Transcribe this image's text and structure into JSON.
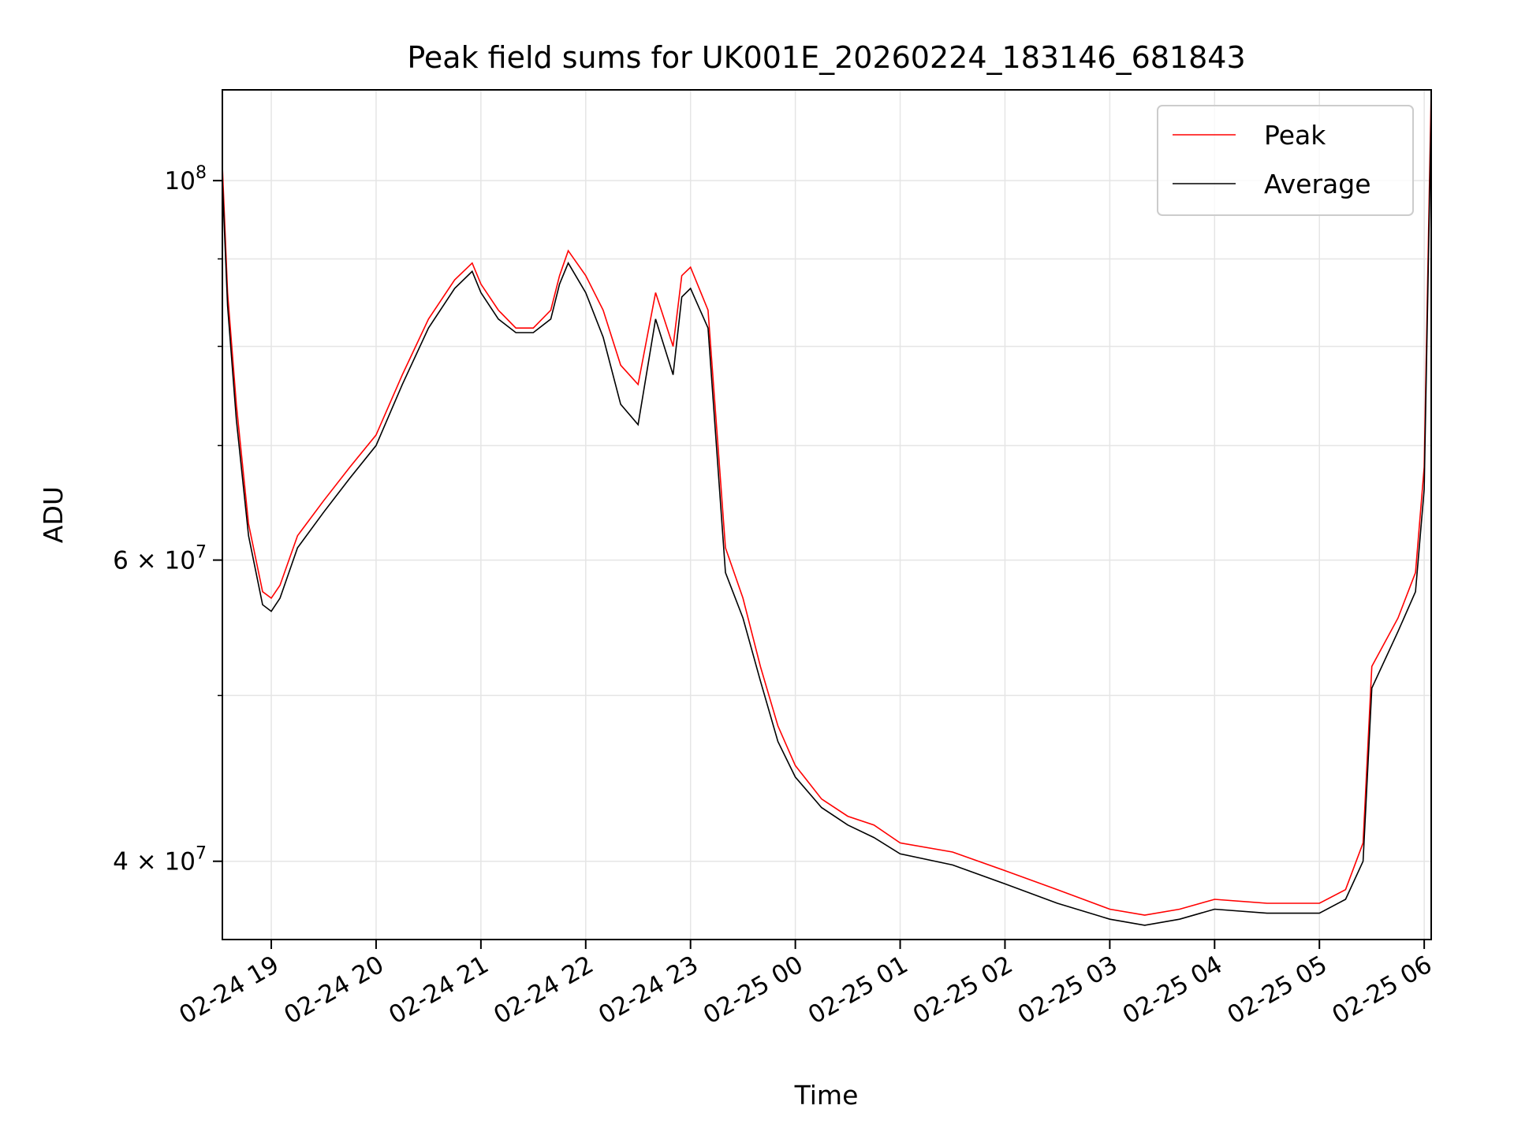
{
  "chart_data": {
    "type": "line",
    "title": "Peak field sums for UK001E_20260224_183146_681843",
    "xlabel": "Time",
    "ylabel": "ADU",
    "yscale": "log",
    "ylim": [
      36000000,
      113000000
    ],
    "xlim": [
      "2026-02-24 18:32",
      "2026-02-25 06:04"
    ],
    "grid": true,
    "legend": "top-right",
    "x_ticks": [
      "02-24 19",
      "02-24 20",
      "02-24 21",
      "02-24 22",
      "02-24 23",
      "02-25 00",
      "02-25 01",
      "02-25 02",
      "02-25 03",
      "02-25 04",
      "02-25 05",
      "02-25 06"
    ],
    "y_ticks": [
      {
        "value": 100000000,
        "base": "10",
        "exp": "8"
      },
      {
        "value": 60000000,
        "base": "6 × 10",
        "exp": "7"
      },
      {
        "value": 40000000,
        "base": "4 × 10",
        "exp": "7"
      }
    ],
    "y_minor_ticks": [
      50000000,
      70000000,
      80000000,
      90000000
    ],
    "series": [
      {
        "name": "Peak",
        "color": "#ff0000"
      },
      {
        "name": "Average",
        "color": "#000000"
      }
    ],
    "x": [
      "2026-02-24 18:32",
      "2026-02-24 18:35",
      "2026-02-24 18:40",
      "2026-02-24 18:47",
      "2026-02-24 18:55",
      "2026-02-24 19:00",
      "2026-02-24 19:05",
      "2026-02-24 19:15",
      "2026-02-24 19:30",
      "2026-02-24 19:45",
      "2026-02-24 20:00",
      "2026-02-24 20:15",
      "2026-02-24 20:30",
      "2026-02-24 20:45",
      "2026-02-24 20:55",
      "2026-02-24 21:00",
      "2026-02-24 21:10",
      "2026-02-24 21:20",
      "2026-02-24 21:30",
      "2026-02-24 21:40",
      "2026-02-24 21:45",
      "2026-02-24 21:50",
      "2026-02-24 22:00",
      "2026-02-24 22:10",
      "2026-02-24 22:20",
      "2026-02-24 22:30",
      "2026-02-24 22:40",
      "2026-02-24 22:50",
      "2026-02-24 22:55",
      "2026-02-24 23:00",
      "2026-02-24 23:10",
      "2026-02-24 23:20",
      "2026-02-24 23:30",
      "2026-02-24 23:40",
      "2026-02-24 23:50",
      "2026-02-25 00:00",
      "2026-02-25 00:15",
      "2026-02-25 00:30",
      "2026-02-25 00:45",
      "2026-02-25 01:00",
      "2026-02-25 01:30",
      "2026-02-25 02:00",
      "2026-02-25 02:30",
      "2026-02-25 03:00",
      "2026-02-25 03:20",
      "2026-02-25 03:40",
      "2026-02-25 04:00",
      "2026-02-25 04:30",
      "2026-02-25 05:00",
      "2026-02-25 05:15",
      "2026-02-25 05:25",
      "2026-02-25 05:30",
      "2026-02-25 05:45",
      "2026-02-25 05:55",
      "2026-02-25 06:00",
      "2026-02-25 06:04"
    ],
    "peak_values": [
      102000000,
      86000000,
      74000000,
      63000000,
      57500000,
      57000000,
      58000000,
      62000000,
      65000000,
      68000000,
      71000000,
      77000000,
      83000000,
      87500000,
      89500000,
      87000000,
      84000000,
      82000000,
      82000000,
      84000000,
      88000000,
      91000000,
      88000000,
      84000000,
      78000000,
      76000000,
      86000000,
      80000000,
      88000000,
      89000000,
      84000000,
      61000000,
      57000000,
      52000000,
      48000000,
      45500000,
      43500000,
      42500000,
      42000000,
      41000000,
      40500000,
      39500000,
      38500000,
      37500000,
      37200000,
      37500000,
      38000000,
      37800000,
      37800000,
      38500000,
      41000000,
      52000000,
      55500000,
      59000000,
      68000000,
      113000000
    ],
    "average_values": [
      100000000,
      84500000,
      72500000,
      62000000,
      56500000,
      56000000,
      57000000,
      61000000,
      64000000,
      67000000,
      70000000,
      76000000,
      82000000,
      86500000,
      88500000,
      86000000,
      83000000,
      81500000,
      81500000,
      83000000,
      87000000,
      89500000,
      86000000,
      81000000,
      74000000,
      72000000,
      83000000,
      77000000,
      85500000,
      86500000,
      82000000,
      59000000,
      55500000,
      51000000,
      47000000,
      44800000,
      43000000,
      42000000,
      41300000,
      40400000,
      39800000,
      38800000,
      37800000,
      37000000,
      36700000,
      37000000,
      37500000,
      37300000,
      37300000,
      38000000,
      40000000,
      50500000,
      54500000,
      57500000,
      66000000,
      110000000
    ]
  }
}
